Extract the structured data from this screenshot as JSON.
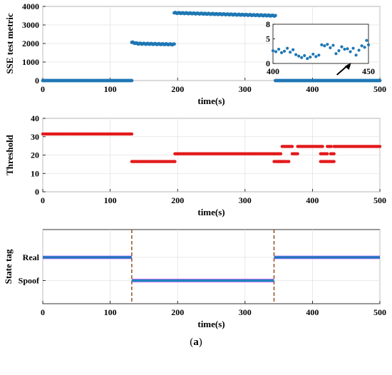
{
  "caption": {
    "open": "(",
    "letter": "a",
    "close": ")"
  },
  "colors": {
    "blue": "#1f77b4",
    "red": "#e31a1c",
    "dashed": "#8b4513",
    "stateMagenta": "#a020f0",
    "stateCyan": "#00c8c8"
  },
  "chart_data": [
    {
      "id": "sse",
      "type": "scatter",
      "xlabel": "time(s)",
      "ylabel": "SSE test metric",
      "xlim": [
        0,
        500
      ],
      "ylim": [
        0,
        4000
      ],
      "xticks": [
        "0",
        "100",
        "200",
        "300",
        "400",
        "500"
      ],
      "yticks": [
        "0",
        "1000",
        "2000",
        "3000",
        "4000"
      ],
      "grid": true,
      "segments": [
        {
          "x": [
            0,
            132
          ],
          "y": [
            0,
            0
          ]
        },
        {
          "x": [
            132,
            195
          ],
          "y": [
            2000,
            1950
          ]
        },
        {
          "x": [
            195,
            345
          ],
          "y": [
            3650,
            3500
          ]
        },
        {
          "x": [
            345,
            500
          ],
          "y": [
            0,
            0
          ]
        }
      ],
      "inset": {
        "xlim": [
          400,
          450
        ],
        "ylim": [
          0,
          8
        ],
        "xticks": [
          "400",
          "450"
        ],
        "yticks": [
          "0",
          "5",
          "8"
        ],
        "points": [
          {
            "x": 400,
            "y": 2.6
          },
          {
            "x": 401.5,
            "y": 2.4
          },
          {
            "x": 403,
            "y": 2.9
          },
          {
            "x": 404.5,
            "y": 2.2
          },
          {
            "x": 406,
            "y": 2.5
          },
          {
            "x": 407.5,
            "y": 3.1
          },
          {
            "x": 409,
            "y": 2.3
          },
          {
            "x": 410.5,
            "y": 2.8
          },
          {
            "x": 412,
            "y": 1.8
          },
          {
            "x": 413.5,
            "y": 1.5
          },
          {
            "x": 415,
            "y": 1.2
          },
          {
            "x": 416.5,
            "y": 1.6
          },
          {
            "x": 418,
            "y": 1.0
          },
          {
            "x": 419.5,
            "y": 1.3
          },
          {
            "x": 421,
            "y": 1.9
          },
          {
            "x": 422.5,
            "y": 1.4
          },
          {
            "x": 424,
            "y": 1.7
          },
          {
            "x": 425.5,
            "y": 3.8
          },
          {
            "x": 427,
            "y": 3.6
          },
          {
            "x": 428.5,
            "y": 3.9
          },
          {
            "x": 430,
            "y": 3.2
          },
          {
            "x": 431.5,
            "y": 3.7
          },
          {
            "x": 433,
            "y": 2.0
          },
          {
            "x": 434.5,
            "y": 2.6
          },
          {
            "x": 436,
            "y": 3.4
          },
          {
            "x": 437.5,
            "y": 2.9
          },
          {
            "x": 439,
            "y": 3.0
          },
          {
            "x": 440.5,
            "y": 2.4
          },
          {
            "x": 442,
            "y": 3.1
          },
          {
            "x": 443.5,
            "y": 1.7
          },
          {
            "x": 445,
            "y": 2.7
          },
          {
            "x": 446.5,
            "y": 3.6
          },
          {
            "x": 448,
            "y": 3.3
          },
          {
            "x": 449,
            "y": 4.7
          },
          {
            "x": 450,
            "y": 3.8
          }
        ],
        "arrow_target": {
          "x": 432,
          "y": 0
        }
      }
    },
    {
      "id": "threshold",
      "type": "scatter",
      "xlabel": "time(s)",
      "ylabel": "Threshold",
      "xlim": [
        0,
        500
      ],
      "ylim": [
        0,
        40
      ],
      "xticks": [
        "0",
        "100",
        "200",
        "300",
        "400",
        "500"
      ],
      "yticks": [
        "0",
        "10",
        "20",
        "30",
        "40"
      ],
      "grid": true,
      "segments": [
        {
          "x": [
            0,
            132
          ],
          "y": [
            31.5,
            31.5
          ]
        },
        {
          "x": [
            132,
            196
          ],
          "y": [
            16.5,
            16.5
          ]
        },
        {
          "x": [
            196,
            343
          ],
          "y": [
            20.7,
            20.7
          ]
        },
        {
          "x": [
            343,
            350
          ],
          "y": [
            16.5,
            16.5
          ]
        },
        {
          "x": [
            343,
            353
          ],
          "y": [
            20.7,
            20.7
          ]
        },
        {
          "x": [
            350,
            355
          ],
          "y": [
            16.5,
            16.5
          ]
        },
        {
          "x": [
            355,
            370
          ],
          "y": [
            24.7,
            24.7
          ]
        },
        {
          "x": [
            353,
            365
          ],
          "y": [
            16.5,
            16.5
          ]
        },
        {
          "x": [
            370,
            378
          ],
          "y": [
            20.7,
            20.7
          ]
        },
        {
          "x": [
            378,
            415
          ],
          "y": [
            24.7,
            24.7
          ]
        },
        {
          "x": [
            412,
            422
          ],
          "y": [
            20.7,
            20.7
          ]
        },
        {
          "x": [
            412,
            427
          ],
          "y": [
            16.5,
            16.5
          ]
        },
        {
          "x": [
            422,
            428
          ],
          "y": [
            24.7,
            24.7
          ]
        },
        {
          "x": [
            427,
            432
          ],
          "y": [
            20.7,
            20.7
          ]
        },
        {
          "x": [
            428,
            432
          ],
          "y": [
            16.5,
            16.5
          ]
        },
        {
          "x": [
            432,
            500
          ],
          "y": [
            24.7,
            24.7
          ]
        }
      ]
    },
    {
      "id": "state",
      "type": "line",
      "xlabel": "time(s)",
      "ylabel": "State tag",
      "xlim": [
        0,
        500
      ],
      "ylim": [
        0,
        1.6
      ],
      "xticks": [
        "0",
        "100",
        "200",
        "300",
        "400",
        "500"
      ],
      "ytick_values": [
        0.5,
        1
      ],
      "yticks": [
        "Spoof",
        "Real"
      ],
      "grid": true,
      "segments": [
        {
          "x": [
            0,
            132
          ],
          "y": [
            1,
            1
          ]
        },
        {
          "x": [
            132,
            343
          ],
          "y": [
            0.5,
            0.5
          ]
        },
        {
          "x": [
            343,
            500
          ],
          "y": [
            1,
            1
          ]
        }
      ],
      "vlines": [
        132,
        343
      ]
    }
  ]
}
